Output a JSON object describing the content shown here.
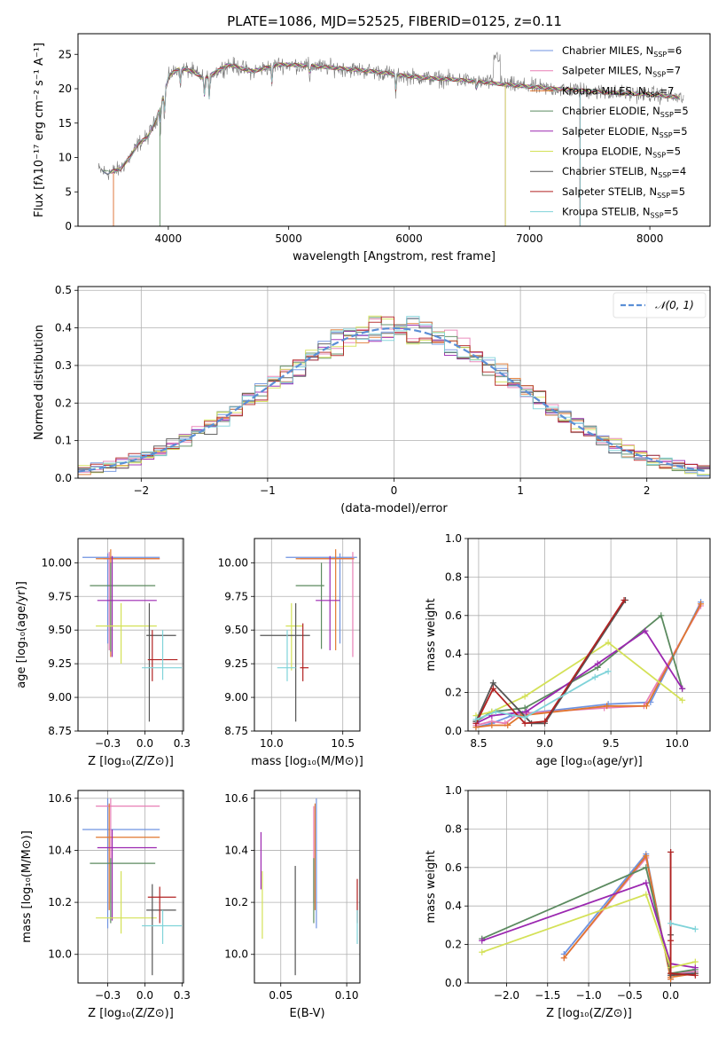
{
  "figure": {
    "title": "PLATE=1086, MJD=52525, FIBERID=0125, z=0.11"
  },
  "colors": {
    "series": [
      "#6f93e0",
      "#e87fb5",
      "#e0772f",
      "#5b8a5f",
      "#9b27b0",
      "#d4e157",
      "#555555",
      "#b22222",
      "#7fd3d9"
    ],
    "normal": "#5b8fd6"
  },
  "chart_data": [
    {
      "id": "spectrum",
      "type": "line",
      "title": "PLATE=1086, MJD=52525, FIBERID=0125, z=0.11",
      "xlabel": "wavelength [Angstrom, rest frame]",
      "ylabel": "Flux [fλ10⁻¹⁷ erg cm⁻² s⁻¹ A⁻¹]",
      "xlim": [
        3250,
        8500
      ],
      "ylim": [
        0,
        28
      ],
      "xticks": [
        4000,
        5000,
        6000,
        7000,
        8000
      ],
      "yticks": [
        0,
        5,
        10,
        15,
        20,
        25
      ],
      "grid": false,
      "legend_position": "top-right",
      "legend": [
        {
          "base": "Chabrier MILES, N",
          "sub": "SSP",
          "tail": "=6"
        },
        {
          "base": "Salpeter MILES, N",
          "sub": "SSP",
          "tail": "=7"
        },
        {
          "base": "Kroupa MILES, N",
          "sub": "SSP",
          "tail": "=7"
        },
        {
          "base": "Chabrier ELODIE, N",
          "sub": "SSP",
          "tail": "=5"
        },
        {
          "base": "Salpeter ELODIE, N",
          "sub": "SSP",
          "tail": "=5"
        },
        {
          "base": "Kroupa ELODIE, N",
          "sub": "SSP",
          "tail": "=5"
        },
        {
          "base": "Chabrier STELIB, N",
          "sub": "SSP",
          "tail": "=4"
        },
        {
          "base": "Salpeter STELIB, N",
          "sub": "SSP",
          "tail": "=5"
        },
        {
          "base": "Kroupa STELIB, N",
          "sub": "SSP",
          "tail": "=5"
        }
      ],
      "continuum": [
        [
          3420,
          8.2
        ],
        [
          3500,
          7.8
        ],
        [
          3600,
          8.3
        ],
        [
          3680,
          10
        ],
        [
          3750,
          12
        ],
        [
          3830,
          13
        ],
        [
          3900,
          15.5
        ],
        [
          3960,
          19
        ],
        [
          4010,
          22
        ],
        [
          4100,
          23
        ],
        [
          4200,
          22.5
        ],
        [
          4300,
          21.5
        ],
        [
          4400,
          22.5
        ],
        [
          4500,
          23.5
        ],
        [
          4600,
          23
        ],
        [
          4700,
          22.5
        ],
        [
          4800,
          23
        ],
        [
          4900,
          23.5
        ],
        [
          5000,
          23.5
        ],
        [
          5200,
          23.3
        ],
        [
          5400,
          23
        ],
        [
          5600,
          22.7
        ],
        [
          5800,
          22.3
        ],
        [
          6000,
          21.8
        ],
        [
          6200,
          21.5
        ],
        [
          6400,
          21.3
        ],
        [
          6600,
          21
        ],
        [
          6800,
          20.6
        ],
        [
          7000,
          20.3
        ],
        [
          7200,
          20
        ],
        [
          7400,
          19.8
        ],
        [
          7600,
          19.5
        ],
        [
          7800,
          19.3
        ],
        [
          8000,
          19.2
        ],
        [
          8200,
          18.8
        ],
        [
          8280,
          18.6
        ]
      ]
    },
    {
      "id": "residuals",
      "type": "step",
      "xlabel": "(data-model)/error",
      "ylabel": "Normed distribution",
      "xlim": [
        -2.5,
        2.5
      ],
      "ylim": [
        0,
        0.51
      ],
      "xticks": [
        -2,
        -1,
        0,
        1,
        2
      ],
      "yticks": [
        0.0,
        0.1,
        0.2,
        0.3,
        0.4,
        0.5
      ],
      "grid": true,
      "bin_width": 0.1,
      "legend_position": "top-right",
      "legend": [
        "𝒩(0, 1)"
      ]
    },
    {
      "id": "age-vs-Z",
      "type": "errorbar",
      "xlabel": "Z [log₁₀(Z/Z⊙)]",
      "ylabel": "age  [log₁₀(age/yr)]",
      "xlim": [
        -0.45,
        0.26
      ],
      "ylim": [
        8.75,
        10.18
      ],
      "xticks": [
        -0.25,
        0.0,
        0.25
      ],
      "yticks": [
        8.75,
        9.0,
        9.25,
        9.5,
        9.75,
        10.0
      ],
      "grid": true,
      "points": [
        {
          "x": -0.25,
          "y": 10.04,
          "xl": -0.42,
          "xh": 0.1,
          "yl": 9.4,
          "yh": 10.07
        },
        {
          "x": -0.24,
          "y": 10.03,
          "xl": -0.28,
          "xh": 0.1,
          "yl": 9.35,
          "yh": 10.08
        },
        {
          "x": -0.23,
          "y": 10.03,
          "xl": -0.33,
          "xh": 0.1,
          "yl": 9.3,
          "yh": 10.1
        },
        {
          "x": -0.23,
          "y": 9.83,
          "xl": -0.37,
          "xh": 0.07,
          "yl": 9.34,
          "yh": 10.0
        },
        {
          "x": -0.22,
          "y": 9.72,
          "xl": -0.32,
          "xh": 0.08,
          "yl": 9.3,
          "yh": 10.05
        },
        {
          "x": -0.16,
          "y": 9.53,
          "xl": -0.33,
          "xh": 0.08,
          "yl": 9.25,
          "yh": 9.7
        },
        {
          "x": 0.03,
          "y": 9.46,
          "xl": 0.01,
          "xh": 0.21,
          "yl": 8.82,
          "yh": 9.7
        },
        {
          "x": 0.05,
          "y": 9.28,
          "xl": 0.02,
          "xh": 0.22,
          "yl": 9.12,
          "yh": 9.5
        },
        {
          "x": 0.12,
          "y": 9.22,
          "xl": -0.02,
          "xh": 0.25,
          "yl": 9.13,
          "yh": 9.5
        }
      ]
    },
    {
      "id": "age-vs-mass",
      "type": "errorbar",
      "xlabel": "mass [log₁₀(M/M⊙)]",
      "ylabel": "",
      "xlim": [
        9.88,
        10.62
      ],
      "ylim": [
        8.75,
        10.18
      ],
      "xticks": [
        10.0,
        10.5
      ],
      "yticks": [
        8.75,
        9.0,
        9.25,
        9.5,
        9.75,
        10.0
      ],
      "grid": true,
      "points": [
        {
          "x": 10.48,
          "y": 10.04,
          "xl": 10.1,
          "xh": 10.6,
          "yl": 9.4,
          "yh": 10.07
        },
        {
          "x": 10.57,
          "y": 10.03,
          "xl": 10.2,
          "xh": 10.57,
          "yl": 9.3,
          "yh": 10.08
        },
        {
          "x": 10.45,
          "y": 10.03,
          "xl": 10.17,
          "xh": 10.58,
          "yl": 9.35,
          "yh": 10.1
        },
        {
          "x": 10.35,
          "y": 9.83,
          "xl": 10.17,
          "xh": 10.37,
          "yl": 9.36,
          "yh": 10.0
        },
        {
          "x": 10.41,
          "y": 9.72,
          "xl": 10.31,
          "xh": 10.48,
          "yl": 9.35,
          "yh": 10.05
        },
        {
          "x": 10.14,
          "y": 9.53,
          "xl": 10.1,
          "xh": 10.22,
          "yl": 9.2,
          "yh": 9.7
        },
        {
          "x": 10.17,
          "y": 9.46,
          "xl": 9.92,
          "xh": 10.27,
          "yl": 8.82,
          "yh": 9.7
        },
        {
          "x": 10.22,
          "y": 9.22,
          "xl": 10.2,
          "xh": 10.26,
          "yl": 9.12,
          "yh": 9.55
        },
        {
          "x": 10.11,
          "y": 9.22,
          "xl": 10.04,
          "xh": 10.17,
          "yl": 9.12,
          "yh": 9.5
        }
      ]
    },
    {
      "id": "massweight-vs-age",
      "type": "line",
      "xlabel": "age  [log₁₀(age/yr)]",
      "ylabel": "mass weight",
      "xlim": [
        8.42,
        10.25
      ],
      "ylim": [
        0,
        1.0
      ],
      "xticks": [
        8.5,
        9.0,
        9.5,
        10.0
      ],
      "yticks": [
        0.0,
        0.2,
        0.4,
        0.6,
        0.8,
        1.0
      ],
      "grid": true,
      "series": [
        {
          "x": [
            8.48,
            8.6,
            8.75,
            8.83,
            9.48,
            9.8,
            10.18
          ],
          "y": [
            0.02,
            0.04,
            0.08,
            0.09,
            0.14,
            0.15,
            0.67
          ]
        },
        {
          "x": [
            8.48,
            8.6,
            8.7,
            8.8,
            9.45,
            9.75,
            10.18
          ],
          "y": [
            0.03,
            0.05,
            0.04,
            0.09,
            0.12,
            0.13,
            0.65
          ]
        },
        {
          "x": [
            8.48,
            8.6,
            8.72,
            8.82,
            9.47,
            9.77,
            10.18
          ],
          "y": [
            0.02,
            0.03,
            0.03,
            0.08,
            0.13,
            0.13,
            0.66
          ]
        },
        {
          "x": [
            8.48,
            8.6,
            8.85,
            9.4,
            9.88,
            10.04
          ],
          "y": [
            0.05,
            0.1,
            0.12,
            0.33,
            0.6,
            0.22
          ]
        },
        {
          "x": [
            8.48,
            8.6,
            8.86,
            9.4,
            9.76,
            10.04
          ],
          "y": [
            0.04,
            0.08,
            0.1,
            0.35,
            0.52,
            0.22
          ]
        },
        {
          "x": [
            8.48,
            8.6,
            8.85,
            9.48,
            10.04
          ],
          "y": [
            0.08,
            0.1,
            0.18,
            0.46,
            0.16
          ]
        },
        {
          "x": [
            8.48,
            8.61,
            8.9,
            9.0,
            9.61
          ],
          "y": [
            0.05,
            0.25,
            0.04,
            0.04,
            0.68
          ]
        },
        {
          "x": [
            8.48,
            8.61,
            8.85,
            9.0,
            9.6
          ],
          "y": [
            0.04,
            0.22,
            0.04,
            0.05,
            0.68
          ]
        },
        {
          "x": [
            8.48,
            8.63,
            8.85,
            9.38,
            9.48
          ],
          "y": [
            0.06,
            0.1,
            0.07,
            0.28,
            0.31
          ]
        }
      ]
    },
    {
      "id": "mass-vs-Z",
      "type": "errorbar",
      "xlabel": "Z [log₁₀(Z/Z⊙)]",
      "ylabel": "mass [log₁₀(M/M⊙)]",
      "xlim": [
        -0.45,
        0.26
      ],
      "ylim": [
        9.89,
        10.63
      ],
      "xticks": [
        -0.25,
        0.0,
        0.25
      ],
      "yticks": [
        10.0,
        10.2,
        10.4,
        10.6
      ],
      "grid": true,
      "points": [
        {
          "x": -0.25,
          "y": 10.48,
          "xl": -0.42,
          "xh": 0.1,
          "yl": 10.1,
          "yh": 10.6
        },
        {
          "x": -0.23,
          "y": 10.57,
          "xl": -0.33,
          "xh": 0.1,
          "yl": 10.2,
          "yh": 10.6
        },
        {
          "x": -0.24,
          "y": 10.45,
          "xl": -0.33,
          "xh": 0.1,
          "yl": 10.17,
          "yh": 10.58
        },
        {
          "x": -0.23,
          "y": 10.35,
          "xl": -0.37,
          "xh": 0.07,
          "yl": 10.12,
          "yh": 10.37
        },
        {
          "x": -0.22,
          "y": 10.41,
          "xl": -0.32,
          "xh": 0.08,
          "yl": 10.13,
          "yh": 10.48
        },
        {
          "x": -0.16,
          "y": 10.14,
          "xl": -0.33,
          "xh": 0.08,
          "yl": 10.08,
          "yh": 10.32
        },
        {
          "x": 0.05,
          "y": 10.17,
          "xl": 0.01,
          "xh": 0.21,
          "yl": 9.92,
          "yh": 10.27
        },
        {
          "x": 0.1,
          "y": 10.22,
          "xl": 0.02,
          "xh": 0.21,
          "yl": 10.12,
          "yh": 10.26
        },
        {
          "x": 0.12,
          "y": 10.11,
          "xl": -0.02,
          "xh": 0.25,
          "yl": 10.04,
          "yh": 10.17
        }
      ]
    },
    {
      "id": "mass-vs-ebv",
      "type": "errorbar",
      "xlabel": "E(B-V)",
      "ylabel": "",
      "xlim": [
        0.03,
        0.11
      ],
      "ylim": [
        9.89,
        10.63
      ],
      "xticks": [
        0.05,
        0.1
      ],
      "yticks": [
        10.0,
        10.2,
        10.4,
        10.6
      ],
      "grid": true,
      "points": [
        {
          "x": 0.077,
          "y": 10.48,
          "yl": 10.1,
          "yh": 10.6
        },
        {
          "x": 0.075,
          "y": 10.57,
          "yl": 10.2,
          "yh": 10.57
        },
        {
          "x": 0.076,
          "y": 10.45,
          "yl": 10.17,
          "yh": 10.58
        },
        {
          "x": 0.075,
          "y": 10.35,
          "yl": 10.12,
          "yh": 10.37
        },
        {
          "x": 0.035,
          "y": 10.41,
          "yl": 10.25,
          "yh": 10.47
        },
        {
          "x": 0.036,
          "y": 10.14,
          "yl": 10.06,
          "yh": 10.32
        },
        {
          "x": 0.061,
          "y": 10.17,
          "yl": 9.92,
          "yh": 10.34
        },
        {
          "x": 0.108,
          "y": 10.22,
          "yl": 10.12,
          "yh": 10.29
        },
        {
          "x": 0.108,
          "y": 10.11,
          "yl": 10.04,
          "yh": 10.17
        }
      ]
    },
    {
      "id": "massweight-vs-Z",
      "type": "line",
      "xlabel": "Z [log₁₀(Z/Z⊙)]",
      "ylabel": "mass weight",
      "xlim": [
        -2.47,
        0.48
      ],
      "ylim": [
        0,
        1.0
      ],
      "xticks": [
        -2.0,
        -1.5,
        -1.0,
        -0.5,
        0.0
      ],
      "yticks": [
        0.0,
        0.2,
        0.4,
        0.6,
        0.8,
        1.0
      ],
      "grid": true,
      "series": [
        {
          "x": [
            -1.3,
            -0.3,
            0.0,
            0.0,
            0.3
          ],
          "y": [
            0.15,
            0.67,
            0.02,
            0.04,
            0.06
          ]
        },
        {
          "x": [
            -1.3,
            -0.3,
            0.0,
            0.0,
            0.3
          ],
          "y": [
            0.13,
            0.65,
            0.03,
            0.05,
            0.06
          ]
        },
        {
          "x": [
            -1.3,
            -0.3,
            0.0,
            0.0,
            0.3
          ],
          "y": [
            0.13,
            0.66,
            0.02,
            0.03,
            0.05
          ]
        },
        {
          "x": [
            -2.3,
            -0.3,
            0.0,
            0.3
          ],
          "y": [
            0.23,
            0.6,
            0.05,
            0.07
          ]
        },
        {
          "x": [
            -2.3,
            -0.3,
            0.0,
            0.3
          ],
          "y": [
            0.22,
            0.52,
            0.1,
            0.08
          ]
        },
        {
          "x": [
            -2.3,
            -0.3,
            0.0,
            0.3
          ],
          "y": [
            0.16,
            0.46,
            0.08,
            0.11
          ]
        },
        {
          "x": [
            0.0,
            0.0,
            0.0,
            0.3
          ],
          "y": [
            0.68,
            0.25,
            0.04,
            0.05
          ]
        },
        {
          "x": [
            0.0,
            0.0,
            0.0,
            0.3
          ],
          "y": [
            0.68,
            0.22,
            0.05,
            0.04
          ]
        },
        {
          "x": [
            0.0,
            0.3
          ],
          "y": [
            0.31,
            0.28
          ]
        }
      ]
    }
  ]
}
